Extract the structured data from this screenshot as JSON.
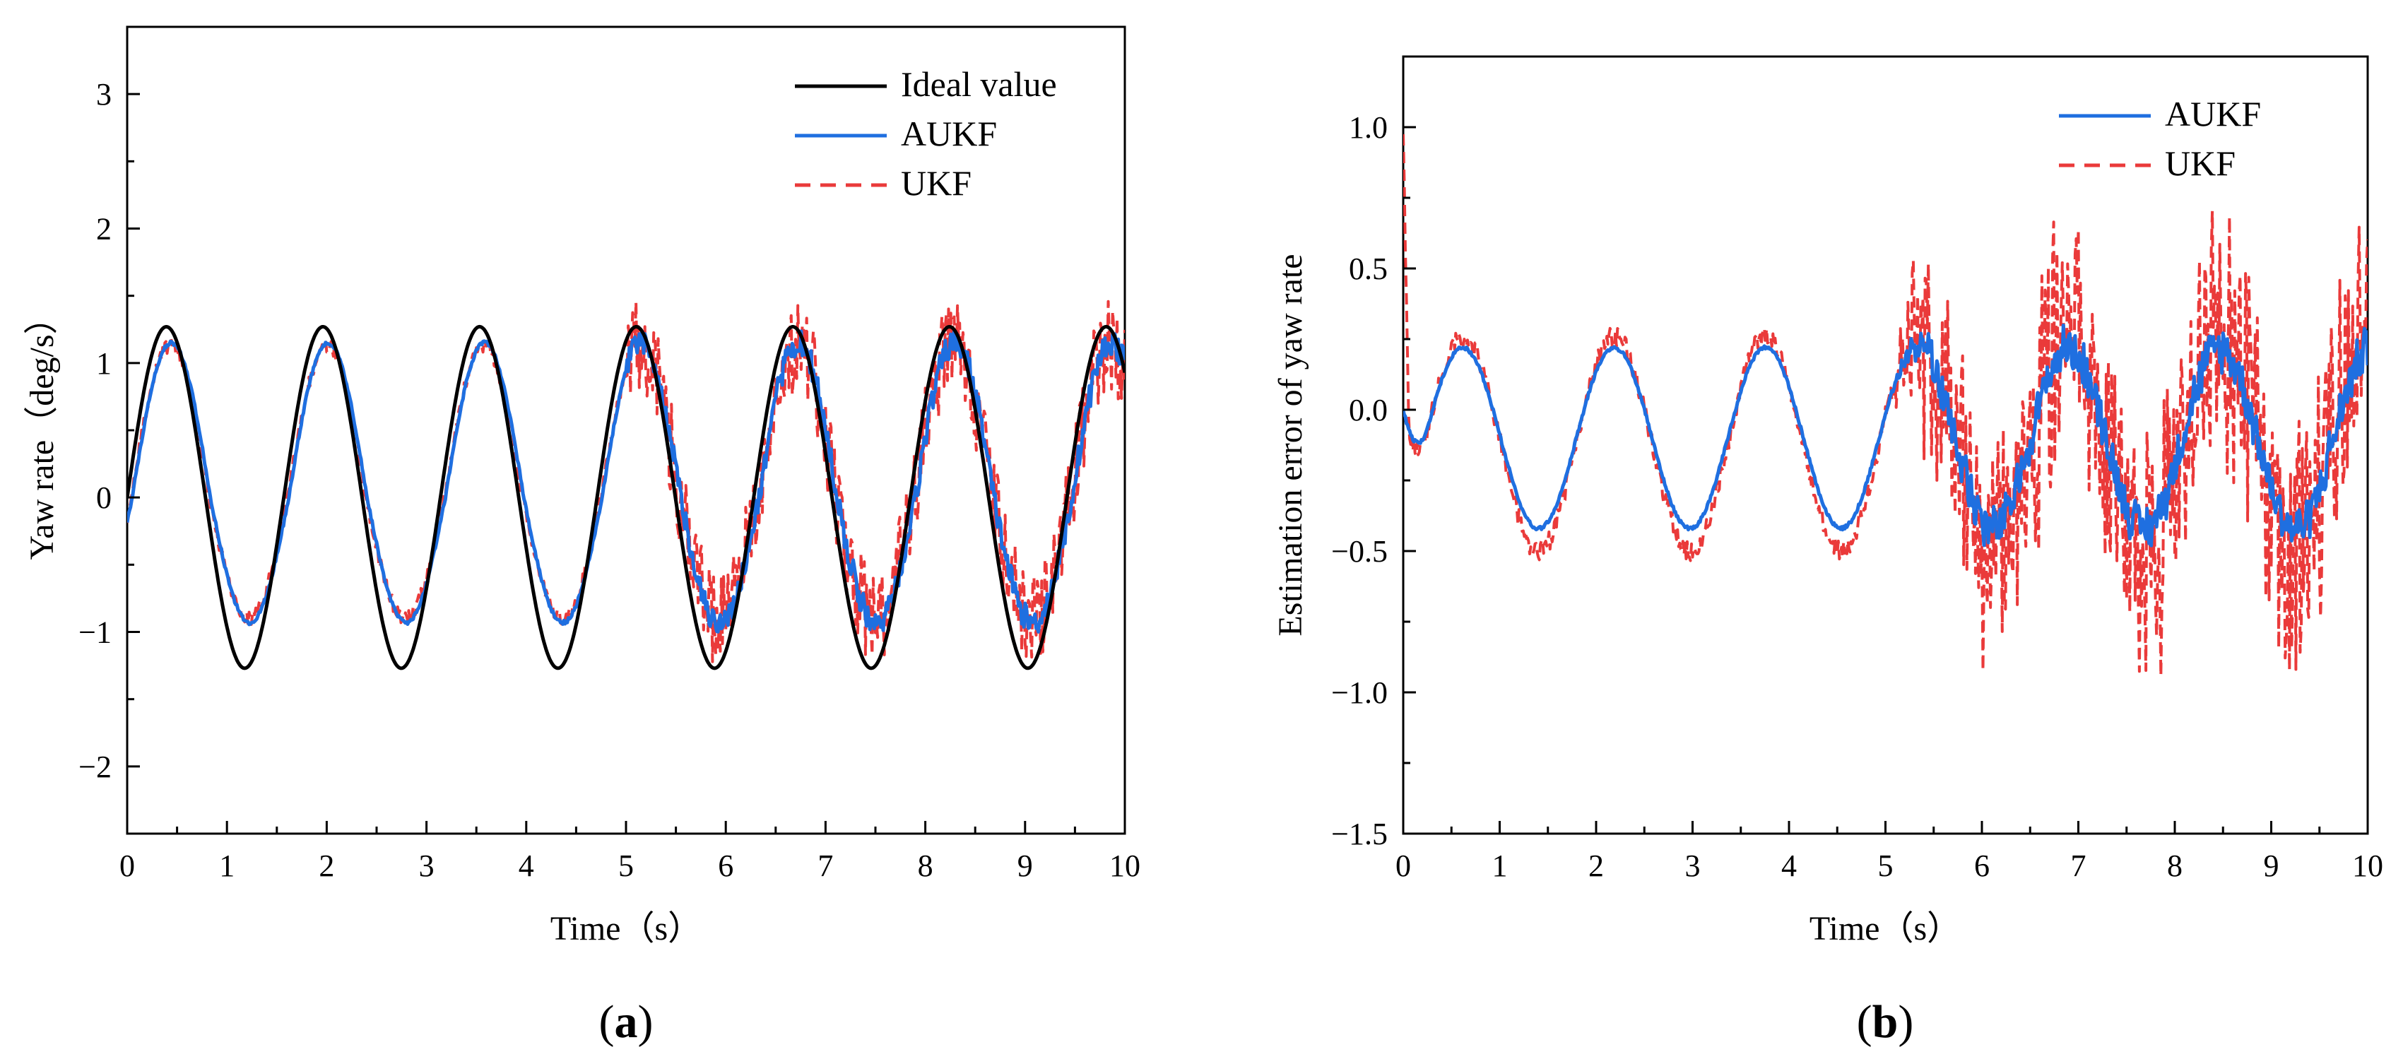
{
  "colors": {
    "ideal": "#000000",
    "aukf": "#1f6fe0",
    "ukf": "#ea3a3a",
    "axis": "#000000"
  },
  "panels": [
    {
      "label_open": "(",
      "label_letter": "a",
      "label_close": ")"
    },
    {
      "label_open": "(",
      "label_letter": "b",
      "label_close": ")"
    }
  ],
  "chart_data": [
    {
      "type": "line",
      "title": "",
      "xlabel": "Time（s）",
      "ylabel": "Yaw rate（deg/s）",
      "xlim": [
        0,
        10
      ],
      "ylim": [
        -2.5,
        3.5
      ],
      "xticks": [
        0,
        1,
        2,
        3,
        4,
        5,
        6,
        7,
        8,
        9,
        10
      ],
      "xtick_labels": [
        "0",
        "1",
        "2",
        "3",
        "4",
        "5",
        "6",
        "7",
        "8",
        "9",
        "10"
      ],
      "yticks": [
        -2,
        -1,
        0,
        1,
        2,
        3
      ],
      "ytick_labels": [
        "−2",
        "−1",
        "0",
        "1",
        "2",
        "3"
      ],
      "legend_position": "top-right",
      "series": [
        {
          "name": "Ideal value",
          "color": "#000000",
          "style": "solid",
          "model": {
            "kind": "sine",
            "amplitude": 1.27,
            "period": 1.57,
            "phase": 0,
            "offset": 0
          }
        },
        {
          "name": "AUKF",
          "color": "#1f6fe0",
          "style": "solid",
          "model": {
            "kind": "sine_noisy",
            "amp_pos": 1.15,
            "amp_neg": 0.93,
            "period": 1.57,
            "phase_lag": 0.05,
            "noise_start": 5.0,
            "noise_amp": 0.1
          }
        },
        {
          "name": "UKF",
          "color": "#ea3a3a",
          "style": "dashed",
          "model": {
            "kind": "sine_noisy",
            "amp_pos": 1.13,
            "amp_neg": 0.9,
            "period": 1.57,
            "phase_lag": 0.04,
            "noise_start": 5.0,
            "noise_amp": 0.35
          }
        }
      ]
    },
    {
      "type": "line",
      "title": "",
      "xlabel": "Time（s）",
      "ylabel": "Estimation error of yaw rate",
      "xlim": [
        0,
        10
      ],
      "ylim": [
        -1.5,
        1.25
      ],
      "xticks": [
        0,
        1,
        2,
        3,
        4,
        5,
        6,
        7,
        8,
        9,
        10
      ],
      "xtick_labels": [
        "0",
        "1",
        "2",
        "3",
        "4",
        "5",
        "6",
        "7",
        "8",
        "9",
        "10"
      ],
      "yticks": [
        -1.5,
        -1.0,
        -0.5,
        0.0,
        0.5,
        1.0
      ],
      "ytick_labels": [
        "−1.5",
        "−1.0",
        "−0.5",
        "0.0",
        "0.5",
        "1.0"
      ],
      "legend_position": "top-right",
      "series": [
        {
          "name": "AUKF",
          "color": "#1f6fe0",
          "style": "solid",
          "model": {
            "kind": "error",
            "amplitude": 0.32,
            "offset": -0.1,
            "period": 1.57,
            "phase": 0.2,
            "noise_start": 5.0,
            "noise_amp": 0.08
          }
        },
        {
          "name": "UKF",
          "color": "#ea3a3a",
          "style": "dashed",
          "model": {
            "kind": "error",
            "amplitude": 0.38,
            "offset": -0.12,
            "period": 1.57,
            "phase": 0.2,
            "noise_start": 5.0,
            "noise_amp": 0.45,
            "spike_start": 0.95
          }
        }
      ]
    }
  ]
}
